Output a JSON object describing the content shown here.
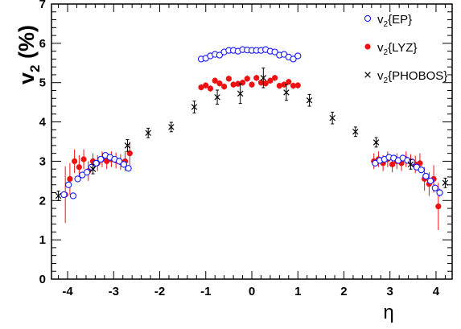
{
  "chart_data": {
    "type": "scatter",
    "title": "",
    "xlabel": "η",
    "ylabel": "v",
    "ylabel_sub": "2",
    "ylabel_suffix": " (%)",
    "xlim": [
      -4.35,
      4.35
    ],
    "ylim": [
      0,
      7
    ],
    "xticks": [
      -4,
      -3,
      -2,
      -1,
      0,
      1,
      2,
      3,
      4
    ],
    "yticks": [
      0,
      1,
      2,
      3,
      4,
      5,
      6,
      7
    ],
    "grid": false,
    "legend_position": "top-right",
    "series": [
      {
        "name": "v2{EP}",
        "legend_main": "v",
        "legend_sub": "2",
        "legend_rest": "{EP}",
        "marker": "open-circle",
        "color": "#1a1aff",
        "points": [
          {
            "x": -4.08,
            "y": 2.15,
            "err": 0.08
          },
          {
            "x": -3.98,
            "y": 2.4,
            "err": 0.08
          },
          {
            "x": -3.88,
            "y": 2.12,
            "err": 0.08
          },
          {
            "x": -3.78,
            "y": 2.55,
            "err": 0.08
          },
          {
            "x": -3.68,
            "y": 2.65,
            "err": 0.08
          },
          {
            "x": -3.58,
            "y": 2.72,
            "err": 0.08
          },
          {
            "x": -3.48,
            "y": 2.85,
            "err": 0.08
          },
          {
            "x": -3.38,
            "y": 2.95,
            "err": 0.08
          },
          {
            "x": -3.28,
            "y": 3.05,
            "err": 0.08
          },
          {
            "x": -3.18,
            "y": 3.15,
            "err": 0.08
          },
          {
            "x": -3.08,
            "y": 3.1,
            "err": 0.08
          },
          {
            "x": -2.98,
            "y": 3.05,
            "err": 0.08
          },
          {
            "x": -2.88,
            "y": 3.0,
            "err": 0.08
          },
          {
            "x": -2.78,
            "y": 2.92,
            "err": 0.08
          },
          {
            "x": -2.68,
            "y": 2.82,
            "err": 0.08
          },
          {
            "x": -1.1,
            "y": 5.6,
            "err": 0.04
          },
          {
            "x": -1.0,
            "y": 5.62,
            "err": 0.04
          },
          {
            "x": -0.9,
            "y": 5.68,
            "err": 0.04
          },
          {
            "x": -0.8,
            "y": 5.72,
            "err": 0.04
          },
          {
            "x": -0.7,
            "y": 5.7,
            "err": 0.04
          },
          {
            "x": -0.6,
            "y": 5.78,
            "err": 0.04
          },
          {
            "x": -0.5,
            "y": 5.82,
            "err": 0.04
          },
          {
            "x": -0.4,
            "y": 5.82,
            "err": 0.04
          },
          {
            "x": -0.3,
            "y": 5.8,
            "err": 0.04
          },
          {
            "x": -0.2,
            "y": 5.84,
            "err": 0.04
          },
          {
            "x": -0.1,
            "y": 5.83,
            "err": 0.04
          },
          {
            "x": 0.0,
            "y": 5.82,
            "err": 0.04
          },
          {
            "x": 0.1,
            "y": 5.82,
            "err": 0.04
          },
          {
            "x": 0.2,
            "y": 5.82,
            "err": 0.04
          },
          {
            "x": 0.3,
            "y": 5.84,
            "err": 0.04
          },
          {
            "x": 0.4,
            "y": 5.8,
            "err": 0.04
          },
          {
            "x": 0.5,
            "y": 5.78,
            "err": 0.04
          },
          {
            "x": 0.6,
            "y": 5.7,
            "err": 0.04
          },
          {
            "x": 0.7,
            "y": 5.72,
            "err": 0.04
          },
          {
            "x": 0.8,
            "y": 5.65,
            "err": 0.04
          },
          {
            "x": 0.9,
            "y": 5.6,
            "err": 0.04
          },
          {
            "x": 1.0,
            "y": 5.68,
            "err": 0.04
          },
          {
            "x": 2.68,
            "y": 2.95,
            "err": 0.08
          },
          {
            "x": 2.78,
            "y": 3.02,
            "err": 0.08
          },
          {
            "x": 2.88,
            "y": 3.05,
            "err": 0.08
          },
          {
            "x": 2.98,
            "y": 3.1,
            "err": 0.08
          },
          {
            "x": 3.08,
            "y": 3.08,
            "err": 0.08
          },
          {
            "x": 3.18,
            "y": 3.02,
            "err": 0.08
          },
          {
            "x": 3.28,
            "y": 3.08,
            "err": 0.08
          },
          {
            "x": 3.38,
            "y": 3.02,
            "err": 0.08
          },
          {
            "x": 3.48,
            "y": 2.98,
            "err": 0.08
          },
          {
            "x": 3.58,
            "y": 2.85,
            "err": 0.08
          },
          {
            "x": 3.68,
            "y": 2.78,
            "err": 0.08
          },
          {
            "x": 3.78,
            "y": 2.62,
            "err": 0.08
          },
          {
            "x": 3.88,
            "y": 2.5,
            "err": 0.08
          },
          {
            "x": 3.98,
            "y": 2.32,
            "err": 0.08
          },
          {
            "x": 4.08,
            "y": 2.2,
            "err": 0.1
          }
        ]
      },
      {
        "name": "v2{LYZ}",
        "legend_main": "v",
        "legend_sub": "2",
        "legend_rest": "{LYZ}",
        "marker": "filled-circle",
        "color": "#ee1111",
        "points": [
          {
            "x": -4.05,
            "y": 2.15,
            "err": 0.72
          },
          {
            "x": -3.95,
            "y": 2.55,
            "err": 0.4
          },
          {
            "x": -3.85,
            "y": 3.0,
            "err": 0.3
          },
          {
            "x": -3.75,
            "y": 2.85,
            "err": 0.3
          },
          {
            "x": -3.65,
            "y": 3.05,
            "err": 0.25
          },
          {
            "x": -3.55,
            "y": 2.75,
            "err": 0.25
          },
          {
            "x": -3.45,
            "y": 3.0,
            "err": 0.2
          },
          {
            "x": -3.35,
            "y": 2.95,
            "err": 0.2
          },
          {
            "x": -3.25,
            "y": 3.05,
            "err": 0.2
          },
          {
            "x": -3.15,
            "y": 3.0,
            "err": 0.2
          },
          {
            "x": -3.05,
            "y": 3.05,
            "err": 0.2
          },
          {
            "x": -2.95,
            "y": 3.02,
            "err": 0.2
          },
          {
            "x": -2.85,
            "y": 2.98,
            "err": 0.2
          },
          {
            "x": -2.75,
            "y": 3.0,
            "err": 0.25
          },
          {
            "x": -2.65,
            "y": 3.2,
            "err": 0.3
          },
          {
            "x": -1.1,
            "y": 4.88,
            "err": 0.08
          },
          {
            "x": -1.0,
            "y": 4.93,
            "err": 0.08
          },
          {
            "x": -0.9,
            "y": 4.85,
            "err": 0.08
          },
          {
            "x": -0.8,
            "y": 5.05,
            "err": 0.08
          },
          {
            "x": -0.7,
            "y": 4.98,
            "err": 0.08
          },
          {
            "x": -0.6,
            "y": 4.9,
            "err": 0.08
          },
          {
            "x": -0.5,
            "y": 5.1,
            "err": 0.08
          },
          {
            "x": -0.4,
            "y": 4.95,
            "err": 0.08
          },
          {
            "x": -0.3,
            "y": 4.97,
            "err": 0.08
          },
          {
            "x": -0.2,
            "y": 5.0,
            "err": 0.08
          },
          {
            "x": -0.1,
            "y": 5.1,
            "err": 0.08
          },
          {
            "x": 0.0,
            "y": 4.95,
            "err": 0.08
          },
          {
            "x": 0.1,
            "y": 5.12,
            "err": 0.08
          },
          {
            "x": 0.2,
            "y": 5.0,
            "err": 0.08
          },
          {
            "x": 0.3,
            "y": 4.98,
            "err": 0.08
          },
          {
            "x": 0.4,
            "y": 5.05,
            "err": 0.08
          },
          {
            "x": 0.5,
            "y": 5.12,
            "err": 0.08
          },
          {
            "x": 0.6,
            "y": 4.92,
            "err": 0.08
          },
          {
            "x": 0.7,
            "y": 4.95,
            "err": 0.08
          },
          {
            "x": 0.8,
            "y": 5.02,
            "err": 0.08
          },
          {
            "x": 0.9,
            "y": 4.92,
            "err": 0.08
          },
          {
            "x": 1.0,
            "y": 4.93,
            "err": 0.08
          },
          {
            "x": 2.65,
            "y": 3.0,
            "err": 0.2
          },
          {
            "x": 2.75,
            "y": 3.05,
            "err": 0.2
          },
          {
            "x": 2.85,
            "y": 2.95,
            "err": 0.2
          },
          {
            "x": 2.95,
            "y": 3.05,
            "err": 0.2
          },
          {
            "x": 3.05,
            "y": 2.92,
            "err": 0.2
          },
          {
            "x": 3.15,
            "y": 3.0,
            "err": 0.2
          },
          {
            "x": 3.25,
            "y": 2.95,
            "err": 0.2
          },
          {
            "x": 3.35,
            "y": 3.05,
            "err": 0.2
          },
          {
            "x": 3.45,
            "y": 2.98,
            "err": 0.2
          },
          {
            "x": 3.55,
            "y": 2.92,
            "err": 0.22
          },
          {
            "x": 3.65,
            "y": 2.95,
            "err": 0.25
          },
          {
            "x": 3.75,
            "y": 2.55,
            "err": 0.3
          },
          {
            "x": 3.85,
            "y": 2.42,
            "err": 0.3
          },
          {
            "x": 3.95,
            "y": 2.55,
            "err": 0.35
          },
          {
            "x": 4.05,
            "y": 1.85,
            "err": 0.6
          }
        ]
      },
      {
        "name": "v2{PHOBOS}",
        "legend_main": "v",
        "legend_sub": "2",
        "legend_rest": "{PHOBOS}",
        "marker": "cross",
        "color": "#000000",
        "points": [
          {
            "x": -4.2,
            "y": 2.12,
            "err": 0.12
          },
          {
            "x": -3.45,
            "y": 2.8,
            "err": 0.12
          },
          {
            "x": -2.7,
            "y": 3.4,
            "err": 0.15
          },
          {
            "x": -2.25,
            "y": 3.72,
            "err": 0.12
          },
          {
            "x": -1.75,
            "y": 3.87,
            "err": 0.12
          },
          {
            "x": -1.25,
            "y": 4.38,
            "err": 0.15
          },
          {
            "x": -0.75,
            "y": 4.63,
            "err": 0.18
          },
          {
            "x": -0.25,
            "y": 4.72,
            "err": 0.25
          },
          {
            "x": 0.25,
            "y": 5.12,
            "err": 0.25
          },
          {
            "x": 0.75,
            "y": 4.75,
            "err": 0.2
          },
          {
            "x": 1.25,
            "y": 4.55,
            "err": 0.15
          },
          {
            "x": 1.75,
            "y": 4.1,
            "err": 0.15
          },
          {
            "x": 2.25,
            "y": 3.75,
            "err": 0.12
          },
          {
            "x": 2.7,
            "y": 3.48,
            "err": 0.12
          },
          {
            "x": 3.45,
            "y": 2.92,
            "err": 0.12
          },
          {
            "x": 4.2,
            "y": 2.45,
            "err": 0.12
          }
        ]
      }
    ]
  }
}
